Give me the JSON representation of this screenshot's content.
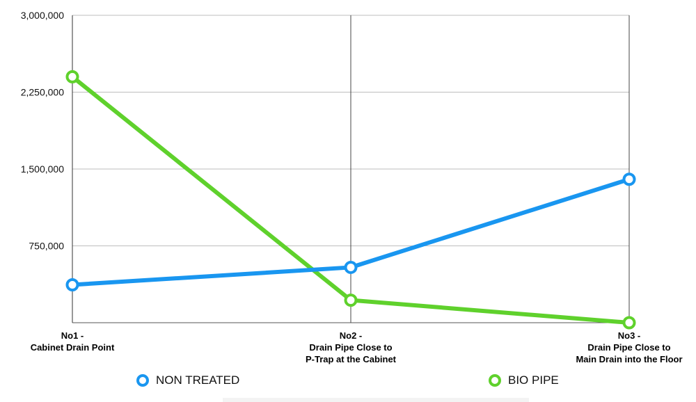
{
  "chart_data": {
    "type": "line",
    "categories": [
      [
        "No1 -",
        "Cabinet Drain Point"
      ],
      [
        "No2 -",
        "Drain Pipe Close to",
        "P-Trap at the Cabinet"
      ],
      [
        "No3 -",
        "Drain Pipe Close to",
        "Main Drain into the Floor"
      ]
    ],
    "ylim": [
      0,
      3000000
    ],
    "yticks": [
      750000,
      1500000,
      2250000,
      3000000
    ],
    "ytick_labels": [
      "750,000",
      "1,500,000",
      "2,250,000",
      "3,000,000"
    ],
    "grid": true,
    "legend_position": "bottom",
    "series": [
      {
        "name": "NON TREATED",
        "color": "#1996f0",
        "values": [
          370000,
          540000,
          1400000
        ]
      },
      {
        "name": "BIO PIPE",
        "color": "#5fd12c",
        "values": [
          2400000,
          220000,
          0
        ]
      }
    ]
  }
}
